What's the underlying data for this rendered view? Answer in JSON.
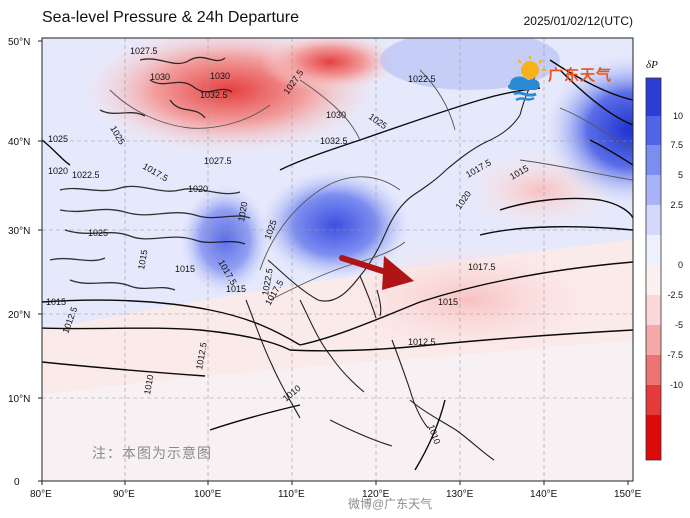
{
  "header": {
    "title": "Sea-level Pressure & 24h Departure",
    "datetime": "2025/01/02/12(UTC)"
  },
  "map": {
    "lon_labels": [
      "80°E",
      "90°E",
      "100°E",
      "110°E",
      "120°E",
      "130°E",
      "140°E",
      "150°E"
    ],
    "lat_labels": [
      "50°N",
      "40°N",
      "30°N",
      "20°N",
      "10°N",
      "0"
    ],
    "contour_labels": [
      "1027.5",
      "1030",
      "1030",
      "1032.5",
      "1027.5",
      "1022.5",
      "1025",
      "1030",
      "1025",
      "1032.5",
      "1025",
      "1020",
      "1022.5",
      "1017.5",
      "1020",
      "1027.5",
      "1025",
      "1025",
      "1020",
      "1017.5",
      "1015",
      "1015",
      "1012.5",
      "1015",
      "1017.5",
      "1015",
      "1022.5",
      "1017.5",
      "1015",
      "1020",
      "1017.5",
      "1015",
      "1012.5",
      "1012.5",
      "1010",
      "1010",
      "1010"
    ],
    "arrow_color": "#b01515"
  },
  "legend": {
    "title": "δP",
    "labels": [
      "10",
      "7.5",
      "5",
      "2.5",
      "0",
      "-2.5",
      "-5",
      "-7.5",
      "-10"
    ],
    "colors": [
      "#2b3dd6",
      "#5064e8",
      "#7c8df0",
      "#a9b4f6",
      "#d4d9fb",
      "#ffffff",
      "#fbd7d7",
      "#f5a9a9",
      "#ee7373",
      "#e63a3a",
      "#de0a0a"
    ]
  },
  "branding": {
    "logo_text": "广东天气",
    "watermark": "注：本图为示意图",
    "footer_watermark": "微博@广东天气"
  }
}
